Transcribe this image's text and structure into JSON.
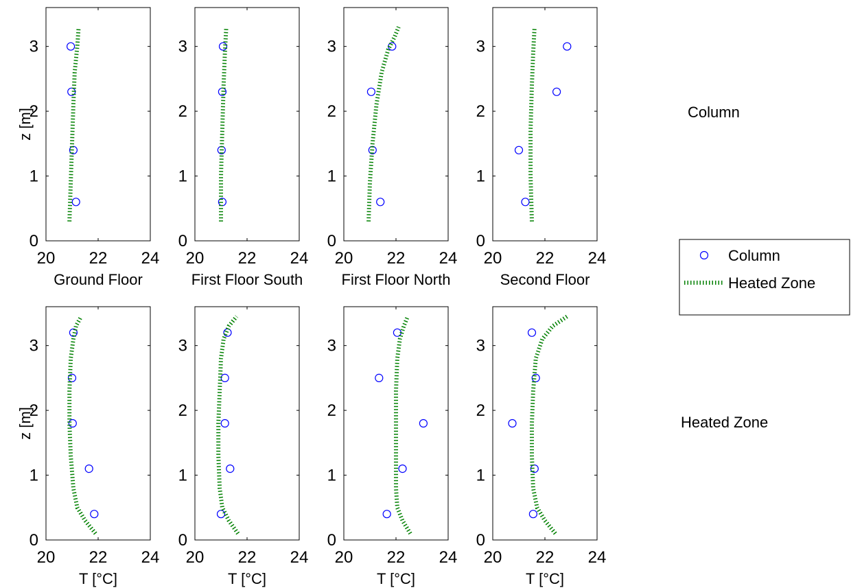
{
  "figure": {
    "row_labels": [
      "Column",
      "Heated Zone"
    ]
  },
  "legend": {
    "placement": "right",
    "entries": [
      {
        "label": "Column",
        "marker": "circle",
        "color": "#0000ff"
      },
      {
        "label": "Heated Zone",
        "marker": "dotted-line",
        "color": "#008000"
      }
    ]
  },
  "colors": {
    "circle": "#0000ff",
    "line": "#008000"
  },
  "chart_data": [
    {
      "type": "scatter",
      "row": "Column",
      "xlabel": "Ground Floor",
      "ylabel": "z [m]",
      "xlim": [
        20,
        24
      ],
      "ylim": [
        0,
        3.6
      ],
      "xticks": [
        20,
        22,
        24
      ],
      "yticks": [
        0,
        1,
        2,
        3
      ],
      "series": [
        {
          "name": "Column",
          "kind": "points",
          "x": [
            20.95,
            20.98,
            21.05,
            21.15
          ],
          "y": [
            3.0,
            2.3,
            1.4,
            0.6
          ]
        },
        {
          "name": "Heated Zone",
          "kind": "line",
          "x": [
            20.9,
            20.95,
            21.0,
            21.05,
            21.1,
            21.2,
            21.25
          ],
          "y": [
            0.3,
            0.9,
            1.5,
            2.1,
            2.6,
            3.0,
            3.28
          ]
        }
      ]
    },
    {
      "type": "scatter",
      "row": "Column",
      "xlabel": "First Floor South",
      "ylabel": "",
      "xlim": [
        20,
        24
      ],
      "ylim": [
        0,
        3.6
      ],
      "xticks": [
        20,
        22,
        24
      ],
      "yticks": [
        0,
        1,
        2,
        3
      ],
      "series": [
        {
          "name": "Column",
          "kind": "points",
          "x": [
            21.08,
            21.05,
            21.02,
            21.05
          ],
          "y": [
            3.0,
            2.3,
            1.4,
            0.6
          ]
        },
        {
          "name": "Heated Zone",
          "kind": "line",
          "x": [
            21.0,
            21.0,
            21.05,
            21.1,
            21.15,
            21.2
          ],
          "y": [
            0.3,
            1.0,
            1.7,
            2.4,
            2.9,
            3.28
          ]
        }
      ]
    },
    {
      "type": "scatter",
      "row": "Column",
      "xlabel": "First Floor North",
      "ylabel": "",
      "xlim": [
        20,
        24
      ],
      "ylim": [
        0,
        3.6
      ],
      "xticks": [
        20,
        22,
        24
      ],
      "yticks": [
        0,
        1,
        2,
        3
      ],
      "series": [
        {
          "name": "Column",
          "kind": "points",
          "x": [
            21.85,
            21.05,
            21.1,
            21.4
          ],
          "y": [
            3.0,
            2.3,
            1.4,
            0.6
          ]
        },
        {
          "name": "Heated Zone",
          "kind": "line",
          "x": [
            20.95,
            21.0,
            21.1,
            21.25,
            21.45,
            21.7,
            21.95,
            22.1
          ],
          "y": [
            0.3,
            0.9,
            1.5,
            2.1,
            2.6,
            2.95,
            3.15,
            3.3
          ]
        }
      ]
    },
    {
      "type": "scatter",
      "row": "Column",
      "xlabel": "Second Floor",
      "ylabel": "",
      "xlim": [
        20,
        24
      ],
      "ylim": [
        0,
        3.6
      ],
      "xticks": [
        20,
        22,
        24
      ],
      "yticks": [
        0,
        1,
        2,
        3
      ],
      "series": [
        {
          "name": "Column",
          "kind": "points",
          "x": [
            22.85,
            22.45,
            21.0,
            21.25
          ],
          "y": [
            3.0,
            2.3,
            1.4,
            0.6
          ]
        },
        {
          "name": "Heated Zone",
          "kind": "line",
          "x": [
            21.5,
            21.45,
            21.45,
            21.5,
            21.55,
            21.6
          ],
          "y": [
            0.3,
            1.0,
            1.7,
            2.4,
            2.9,
            3.28
          ]
        }
      ]
    },
    {
      "type": "scatter",
      "row": "Heated Zone",
      "xlabel": "T [°C]",
      "ylabel": "z [m]",
      "xlim": [
        20,
        24
      ],
      "ylim": [
        0,
        3.6
      ],
      "xticks": [
        20,
        22,
        24
      ],
      "yticks": [
        0,
        1,
        2,
        3
      ],
      "series": [
        {
          "name": "Column",
          "kind": "points",
          "x": [
            21.05,
            21.0,
            21.02,
            21.65,
            21.85
          ],
          "y": [
            3.2,
            2.5,
            1.8,
            1.1,
            0.4
          ]
        },
        {
          "name": "Heated Zone",
          "kind": "line",
          "x": [
            21.9,
            21.5,
            21.2,
            21.05,
            20.95,
            20.9,
            20.9,
            20.95,
            21.05,
            21.15,
            21.35
          ],
          "y": [
            0.1,
            0.3,
            0.5,
            0.8,
            1.3,
            1.8,
            2.3,
            2.8,
            3.1,
            3.3,
            3.45
          ]
        }
      ]
    },
    {
      "type": "scatter",
      "row": "Heated Zone",
      "xlabel": "T [°C]",
      "ylabel": "",
      "xlim": [
        20,
        24
      ],
      "ylim": [
        0,
        3.6
      ],
      "xticks": [
        20,
        22,
        24
      ],
      "yticks": [
        0,
        1,
        2,
        3
      ],
      "series": [
        {
          "name": "Column",
          "kind": "points",
          "x": [
            21.25,
            21.15,
            21.15,
            21.35,
            21.0
          ],
          "y": [
            3.2,
            2.5,
            1.8,
            1.1,
            0.4
          ]
        },
        {
          "name": "Heated Zone",
          "kind": "line",
          "x": [
            21.65,
            21.3,
            21.05,
            20.95,
            20.9,
            20.9,
            20.95,
            21.0,
            21.1,
            21.3,
            21.6
          ],
          "y": [
            0.1,
            0.3,
            0.5,
            0.8,
            1.3,
            1.8,
            2.3,
            2.8,
            3.1,
            3.3,
            3.45
          ]
        }
      ]
    },
    {
      "type": "scatter",
      "row": "Heated Zone",
      "xlabel": "T [°C]",
      "ylabel": "",
      "xlim": [
        20,
        24
      ],
      "ylim": [
        0,
        3.6
      ],
      "xticks": [
        20,
        22,
        24
      ],
      "yticks": [
        0,
        1,
        2,
        3
      ],
      "series": [
        {
          "name": "Column",
          "kind": "points",
          "x": [
            22.05,
            21.35,
            23.05,
            22.25,
            21.65
          ],
          "y": [
            3.2,
            2.5,
            1.8,
            1.1,
            0.4
          ]
        },
        {
          "name": "Heated Zone",
          "kind": "line",
          "x": [
            22.55,
            22.25,
            22.05,
            22.0,
            22.0,
            22.0,
            22.0,
            22.05,
            22.15,
            22.3,
            22.45
          ],
          "y": [
            0.1,
            0.3,
            0.5,
            0.8,
            1.3,
            1.8,
            2.3,
            2.8,
            3.1,
            3.3,
            3.45
          ]
        }
      ]
    },
    {
      "type": "scatter",
      "row": "Heated Zone",
      "xlabel": "T [°C]",
      "ylabel": "",
      "xlim": [
        20,
        24
      ],
      "ylim": [
        0,
        3.6
      ],
      "xticks": [
        20,
        22,
        24
      ],
      "yticks": [
        0,
        1,
        2,
        3
      ],
      "series": [
        {
          "name": "Column",
          "kind": "points",
          "x": [
            21.5,
            21.65,
            20.75,
            21.6,
            21.55
          ],
          "y": [
            3.2,
            2.5,
            1.8,
            1.1,
            0.4
          ]
        },
        {
          "name": "Heated Zone",
          "kind": "line",
          "x": [
            22.4,
            22.0,
            21.7,
            21.55,
            21.5,
            21.5,
            21.55,
            21.65,
            21.9,
            22.3,
            22.85
          ],
          "y": [
            0.1,
            0.3,
            0.5,
            0.8,
            1.3,
            1.8,
            2.3,
            2.8,
            3.1,
            3.3,
            3.45
          ]
        }
      ]
    }
  ]
}
